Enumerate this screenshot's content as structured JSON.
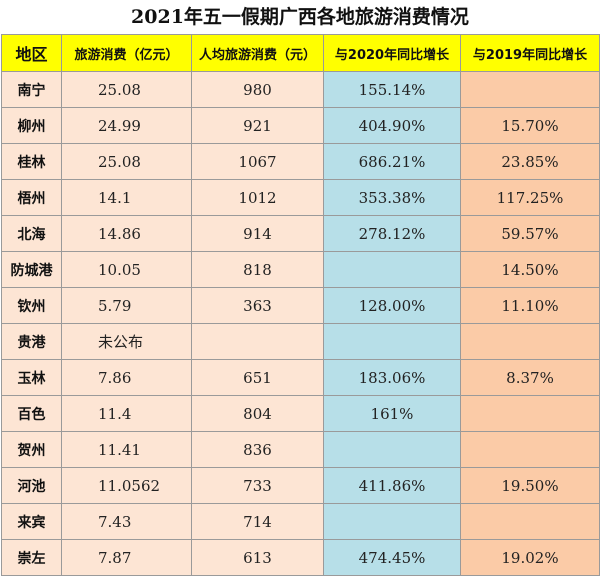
{
  "title": "2021年五一假期广西各地旅游消费情况",
  "headers": [
    "地区",
    "旅游消费（亿元）",
    "人均旅游消费（元）",
    "与2020年同比增长",
    "与2019年同比增长"
  ],
  "rows": [
    {
      "region": "南宁",
      "spending": "25.08",
      "per_capita": "980",
      "growth_2020": "155.14%",
      "growth_2019": ""
    },
    {
      "region": "柳州",
      "spending": "24.99",
      "per_capita": "921",
      "growth_2020": "404.90%",
      "growth_2019": "15.70%"
    },
    {
      "region": "桂林",
      "spending": "25.08",
      "per_capita": "1067",
      "growth_2020": "686.21%",
      "growth_2019": "23.85%"
    },
    {
      "region": "梧州",
      "spending": "14.1",
      "per_capita": "1012",
      "growth_2020": "353.38%",
      "growth_2019": "117.25%"
    },
    {
      "region": "北海",
      "spending": "14.86",
      "per_capita": "914",
      "growth_2020": "278.12%",
      "growth_2019": "59.57%"
    },
    {
      "region": "防城港",
      "spending": "10.05",
      "per_capita": "818",
      "growth_2020": "",
      "growth_2019": "14.50%"
    },
    {
      "region": "钦州",
      "spending": "5.79",
      "per_capita": "363",
      "growth_2020": "128.00%",
      "growth_2019": "11.10%"
    },
    {
      "region": "贵港",
      "spending": "未公布",
      "per_capita": "",
      "growth_2020": "",
      "growth_2019": ""
    },
    {
      "region": "玉林",
      "spending": "7.86",
      "per_capita": "651",
      "growth_2020": "183.06%",
      "growth_2019": "8.37%"
    },
    {
      "region": "百色",
      "spending": "11.4",
      "per_capita": "804",
      "growth_2020": "161%",
      "growth_2019": ""
    },
    {
      "region": "贺州",
      "spending": "11.41",
      "per_capita": "836",
      "growth_2020": "",
      "growth_2019": ""
    },
    {
      "region": "河池",
      "spending": "11.0562",
      "per_capita": "733",
      "growth_2020": "411.86%",
      "growth_2019": "19.50%"
    },
    {
      "region": "来宾",
      "spending": "7.43",
      "per_capita": "714",
      "growth_2020": "",
      "growth_2019": ""
    },
    {
      "region": "崇左",
      "spending": "7.87",
      "per_capita": "613",
      "growth_2020": "474.45%",
      "growth_2019": "19.02%"
    }
  ]
}
